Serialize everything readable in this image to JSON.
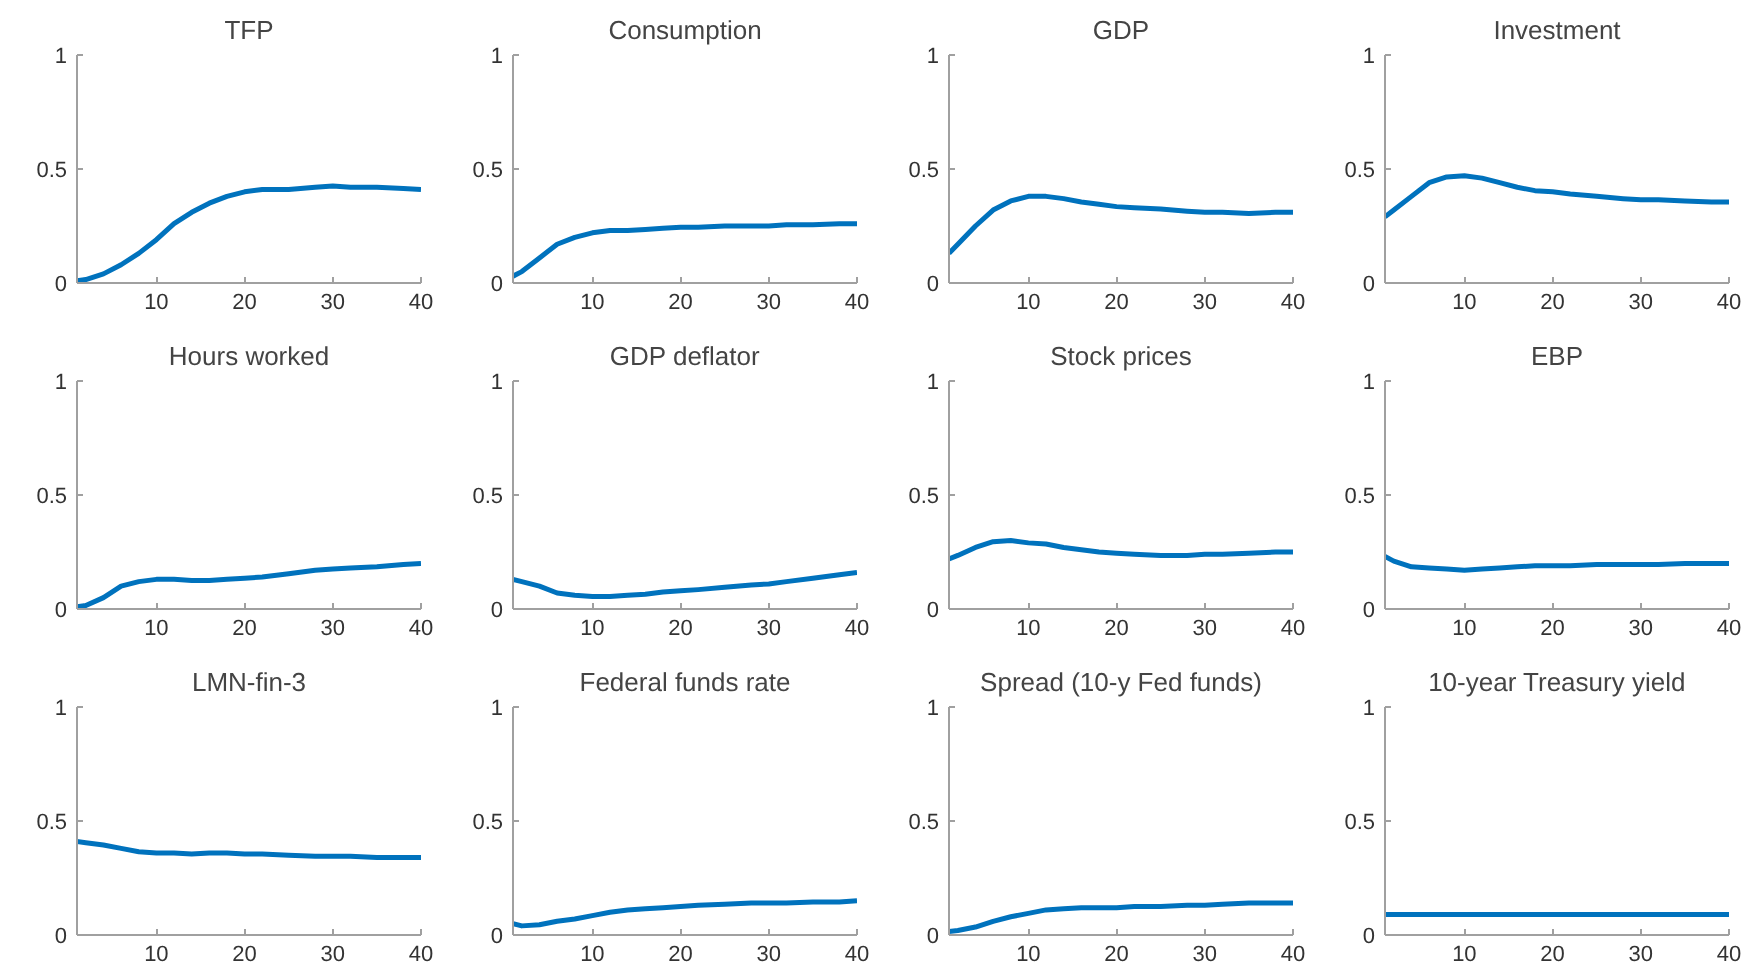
{
  "chart_data": [
    {
      "type": "line",
      "title": "TFP",
      "x": [
        1,
        2,
        4,
        6,
        8,
        10,
        12,
        14,
        16,
        18,
        20,
        22,
        25,
        28,
        30,
        32,
        35,
        38,
        40
      ],
      "values": [
        0.01,
        0.015,
        0.04,
        0.08,
        0.13,
        0.19,
        0.26,
        0.31,
        0.35,
        0.38,
        0.4,
        0.41,
        0.41,
        0.42,
        0.425,
        0.42,
        0.42,
        0.415,
        0.41
      ],
      "color": "#0072bd",
      "xlim": [
        1,
        40
      ],
      "ylim": [
        0,
        1
      ],
      "xticks": [
        10,
        20,
        30,
        40
      ],
      "yticks": [
        0,
        0.5,
        1
      ],
      "grid": false
    },
    {
      "type": "line",
      "title": "Consumption",
      "x": [
        1,
        2,
        4,
        6,
        8,
        10,
        12,
        14,
        16,
        18,
        20,
        22,
        25,
        28,
        30,
        32,
        35,
        38,
        40
      ],
      "values": [
        0.03,
        0.05,
        0.11,
        0.17,
        0.2,
        0.22,
        0.23,
        0.23,
        0.235,
        0.24,
        0.245,
        0.245,
        0.25,
        0.25,
        0.25,
        0.255,
        0.255,
        0.26,
        0.26
      ],
      "color": "#0072bd",
      "xlim": [
        1,
        40
      ],
      "ylim": [
        0,
        1
      ],
      "xticks": [
        10,
        20,
        30,
        40
      ],
      "yticks": [
        0,
        0.5,
        1
      ],
      "grid": false
    },
    {
      "type": "line",
      "title": "GDP",
      "x": [
        1,
        2,
        4,
        6,
        8,
        10,
        12,
        14,
        16,
        18,
        20,
        22,
        25,
        28,
        30,
        32,
        35,
        38,
        40
      ],
      "values": [
        0.13,
        0.17,
        0.25,
        0.32,
        0.36,
        0.38,
        0.38,
        0.37,
        0.355,
        0.345,
        0.335,
        0.33,
        0.325,
        0.315,
        0.31,
        0.31,
        0.305,
        0.31,
        0.31
      ],
      "color": "#0072bd",
      "xlim": [
        1,
        40
      ],
      "ylim": [
        0,
        1
      ],
      "xticks": [
        10,
        20,
        30,
        40
      ],
      "yticks": [
        0,
        0.5,
        1
      ],
      "grid": false
    },
    {
      "type": "line",
      "title": "Investment",
      "x": [
        1,
        2,
        4,
        6,
        8,
        10,
        12,
        14,
        16,
        18,
        20,
        22,
        25,
        28,
        30,
        32,
        35,
        38,
        40
      ],
      "values": [
        0.29,
        0.32,
        0.38,
        0.44,
        0.465,
        0.47,
        0.46,
        0.44,
        0.42,
        0.405,
        0.4,
        0.39,
        0.38,
        0.37,
        0.365,
        0.365,
        0.36,
        0.355,
        0.355
      ],
      "color": "#0072bd",
      "xlim": [
        1,
        40
      ],
      "ylim": [
        0,
        1
      ],
      "xticks": [
        10,
        20,
        30,
        40
      ],
      "yticks": [
        0,
        0.5,
        1
      ],
      "grid": false
    },
    {
      "type": "line",
      "title": "Hours worked",
      "x": [
        1,
        2,
        4,
        6,
        8,
        10,
        12,
        14,
        16,
        18,
        20,
        22,
        25,
        28,
        30,
        32,
        35,
        38,
        40
      ],
      "values": [
        0.01,
        0.015,
        0.05,
        0.1,
        0.12,
        0.13,
        0.13,
        0.125,
        0.125,
        0.13,
        0.135,
        0.14,
        0.155,
        0.17,
        0.175,
        0.18,
        0.185,
        0.195,
        0.2
      ],
      "color": "#0072bd",
      "xlim": [
        1,
        40
      ],
      "ylim": [
        0,
        1
      ],
      "xticks": [
        10,
        20,
        30,
        40
      ],
      "yticks": [
        0,
        0.5,
        1
      ],
      "grid": false
    },
    {
      "type": "line",
      "title": "GDP deflator",
      "x": [
        1,
        2,
        4,
        6,
        8,
        10,
        12,
        14,
        16,
        18,
        20,
        22,
        25,
        28,
        30,
        32,
        35,
        38,
        40
      ],
      "values": [
        0.13,
        0.12,
        0.1,
        0.07,
        0.06,
        0.055,
        0.055,
        0.06,
        0.065,
        0.075,
        0.08,
        0.085,
        0.095,
        0.105,
        0.11,
        0.12,
        0.135,
        0.15,
        0.16
      ],
      "color": "#0072bd",
      "xlim": [
        1,
        40
      ],
      "ylim": [
        0,
        1
      ],
      "xticks": [
        10,
        20,
        30,
        40
      ],
      "yticks": [
        0,
        0.5,
        1
      ],
      "grid": false
    },
    {
      "type": "line",
      "title": "Stock prices",
      "x": [
        1,
        2,
        4,
        6,
        8,
        10,
        12,
        14,
        16,
        18,
        20,
        22,
        25,
        28,
        30,
        32,
        35,
        38,
        40
      ],
      "values": [
        0.22,
        0.235,
        0.27,
        0.295,
        0.3,
        0.29,
        0.285,
        0.27,
        0.26,
        0.25,
        0.245,
        0.24,
        0.235,
        0.235,
        0.24,
        0.24,
        0.245,
        0.25,
        0.25
      ],
      "color": "#0072bd",
      "xlim": [
        1,
        40
      ],
      "ylim": [
        0,
        1
      ],
      "xticks": [
        10,
        20,
        30,
        40
      ],
      "yticks": [
        0,
        0.5,
        1
      ],
      "grid": false
    },
    {
      "type": "line",
      "title": "EBP",
      "x": [
        1,
        2,
        4,
        6,
        8,
        10,
        12,
        14,
        16,
        18,
        20,
        22,
        25,
        28,
        30,
        32,
        35,
        38,
        40
      ],
      "values": [
        0.23,
        0.21,
        0.185,
        0.18,
        0.175,
        0.17,
        0.175,
        0.18,
        0.185,
        0.19,
        0.19,
        0.19,
        0.195,
        0.195,
        0.195,
        0.195,
        0.2,
        0.2,
        0.2
      ],
      "color": "#0072bd",
      "xlim": [
        1,
        40
      ],
      "ylim": [
        0,
        1
      ],
      "xticks": [
        10,
        20,
        30,
        40
      ],
      "yticks": [
        0,
        0.5,
        1
      ],
      "grid": false
    },
    {
      "type": "line",
      "title": "LMN-fin-3",
      "x": [
        1,
        2,
        4,
        6,
        8,
        10,
        12,
        14,
        16,
        18,
        20,
        22,
        25,
        28,
        30,
        32,
        35,
        38,
        40
      ],
      "values": [
        0.41,
        0.405,
        0.395,
        0.38,
        0.365,
        0.36,
        0.36,
        0.355,
        0.36,
        0.36,
        0.355,
        0.355,
        0.35,
        0.345,
        0.345,
        0.345,
        0.34,
        0.34,
        0.34
      ],
      "color": "#0072bd",
      "xlim": [
        1,
        40
      ],
      "ylim": [
        0,
        1
      ],
      "xticks": [
        10,
        20,
        30,
        40
      ],
      "yticks": [
        0,
        0.5,
        1
      ],
      "grid": false
    },
    {
      "type": "line",
      "title": "Federal funds rate",
      "x": [
        1,
        2,
        4,
        6,
        8,
        10,
        12,
        14,
        16,
        18,
        20,
        22,
        25,
        28,
        30,
        32,
        35,
        38,
        40
      ],
      "values": [
        0.05,
        0.04,
        0.045,
        0.06,
        0.07,
        0.085,
        0.1,
        0.11,
        0.115,
        0.12,
        0.125,
        0.13,
        0.135,
        0.14,
        0.14,
        0.14,
        0.145,
        0.145,
        0.15
      ],
      "color": "#0072bd",
      "xlim": [
        1,
        40
      ],
      "ylim": [
        0,
        1
      ],
      "xticks": [
        10,
        20,
        30,
        40
      ],
      "yticks": [
        0,
        0.5,
        1
      ],
      "grid": false
    },
    {
      "type": "line",
      "title": "Spread (10-y Fed funds)",
      "x": [
        1,
        2,
        4,
        6,
        8,
        10,
        12,
        14,
        16,
        18,
        20,
        22,
        25,
        28,
        30,
        32,
        35,
        38,
        40
      ],
      "values": [
        0.015,
        0.02,
        0.035,
        0.06,
        0.08,
        0.095,
        0.11,
        0.115,
        0.12,
        0.12,
        0.12,
        0.125,
        0.125,
        0.13,
        0.13,
        0.135,
        0.14,
        0.14,
        0.14
      ],
      "color": "#0072bd",
      "xlim": [
        1,
        40
      ],
      "ylim": [
        0,
        1
      ],
      "xticks": [
        10,
        20,
        30,
        40
      ],
      "yticks": [
        0,
        0.5,
        1
      ],
      "grid": false
    },
    {
      "type": "line",
      "title": "10-year Treasury yield",
      "x": [
        1,
        2,
        4,
        6,
        8,
        10,
        12,
        14,
        16,
        18,
        20,
        22,
        25,
        28,
        30,
        32,
        35,
        38,
        40
      ],
      "values": [
        0.09,
        0.09,
        0.09,
        0.09,
        0.09,
        0.09,
        0.09,
        0.09,
        0.09,
        0.09,
        0.09,
        0.09,
        0.09,
        0.09,
        0.09,
        0.09,
        0.09,
        0.09,
        0.09
      ],
      "color": "#0072bd",
      "xlim": [
        1,
        40
      ],
      "ylim": [
        0,
        1
      ],
      "xticks": [
        10,
        20,
        30,
        40
      ],
      "yticks": [
        0,
        0.5,
        1
      ],
      "grid": false
    }
  ]
}
